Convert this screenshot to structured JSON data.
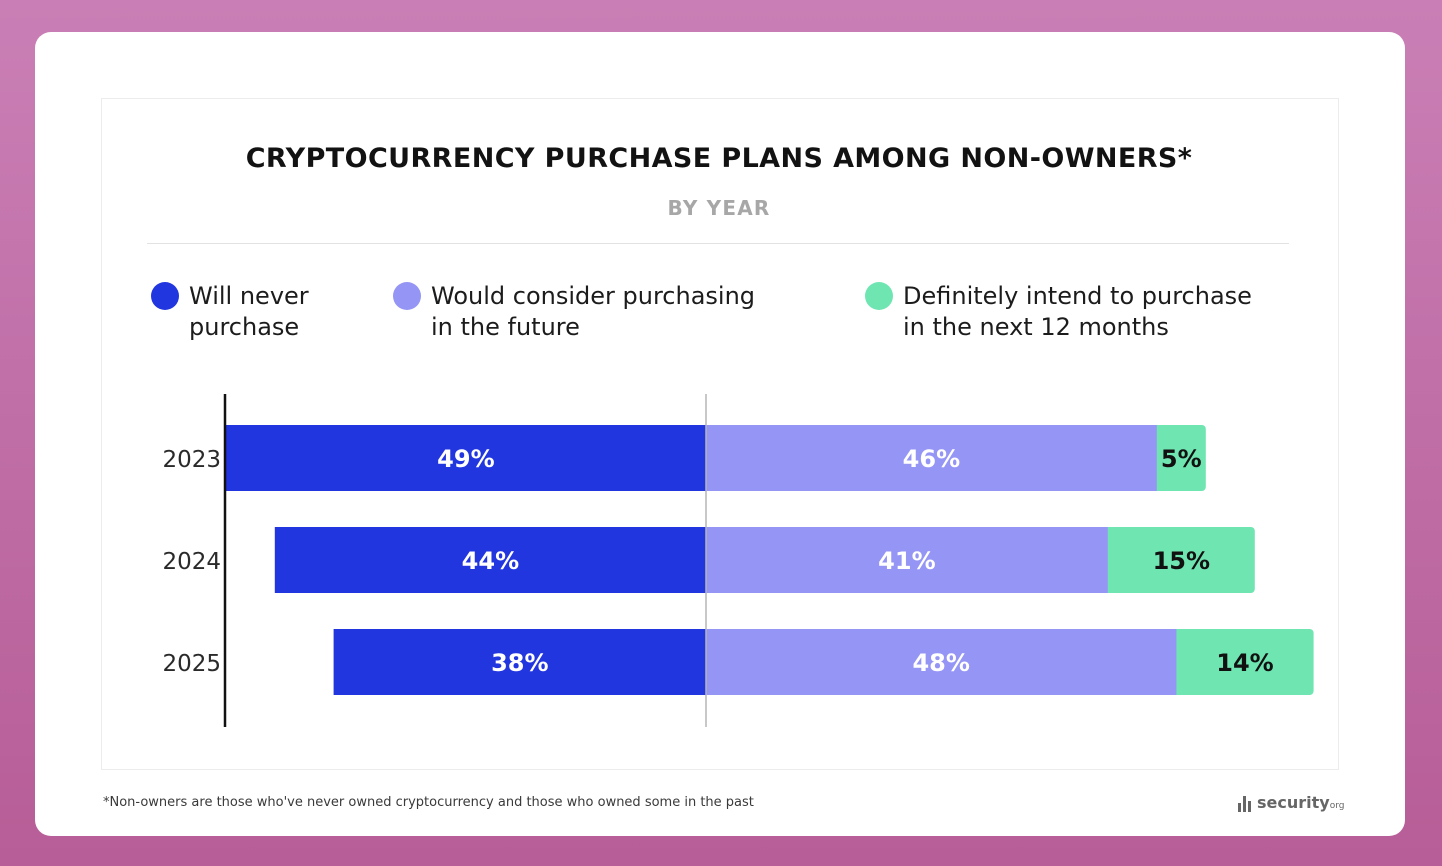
{
  "title": "CRYPTOCURRENCY PURCHASE PLANS AMONG NON-OWNERS*",
  "subtitle": "BY YEAR",
  "footnote": "*Non-owners are those who've never owned cryptocurrency and those who owned some in the past",
  "brand": {
    "name": "security",
    "suffix": "org"
  },
  "legend": [
    {
      "label_line1": "Will never",
      "label_line2": "purchase",
      "color": "#2236e0"
    },
    {
      "label_line1": "Would consider purchasing",
      "label_line2": "in the future",
      "color": "#9595f5"
    },
    {
      "label_line1": "Definitely intend to purchase",
      "label_line2": "in the next 12 months",
      "color": "#6fe5b1"
    }
  ],
  "chart_data": {
    "type": "bar",
    "orientation": "horizontal-stacked-diverging",
    "title": "CRYPTOCURRENCY PURCHASE PLANS AMONG NON-OWNERS*",
    "subtitle": "BY YEAR",
    "categories": [
      "2023",
      "2024",
      "2025"
    ],
    "series": [
      {
        "name": "Will never purchase",
        "values": [
          49,
          44,
          38
        ],
        "labels": [
          "49%",
          "44%",
          "38%"
        ],
        "color": "#2236e0"
      },
      {
        "name": "Would consider purchasing in the future",
        "values": [
          46,
          41,
          48
        ],
        "labels": [
          "46%",
          "41%",
          "48%"
        ],
        "color": "#9595f5"
      },
      {
        "name": "Definitely intend to purchase in the next 12 months",
        "values": [
          5,
          15,
          14
        ],
        "labels": [
          "5%",
          "15%",
          "14%"
        ],
        "color": "#6fe5b1"
      }
    ],
    "unit": "%",
    "legend_position": "top",
    "grid": false
  }
}
